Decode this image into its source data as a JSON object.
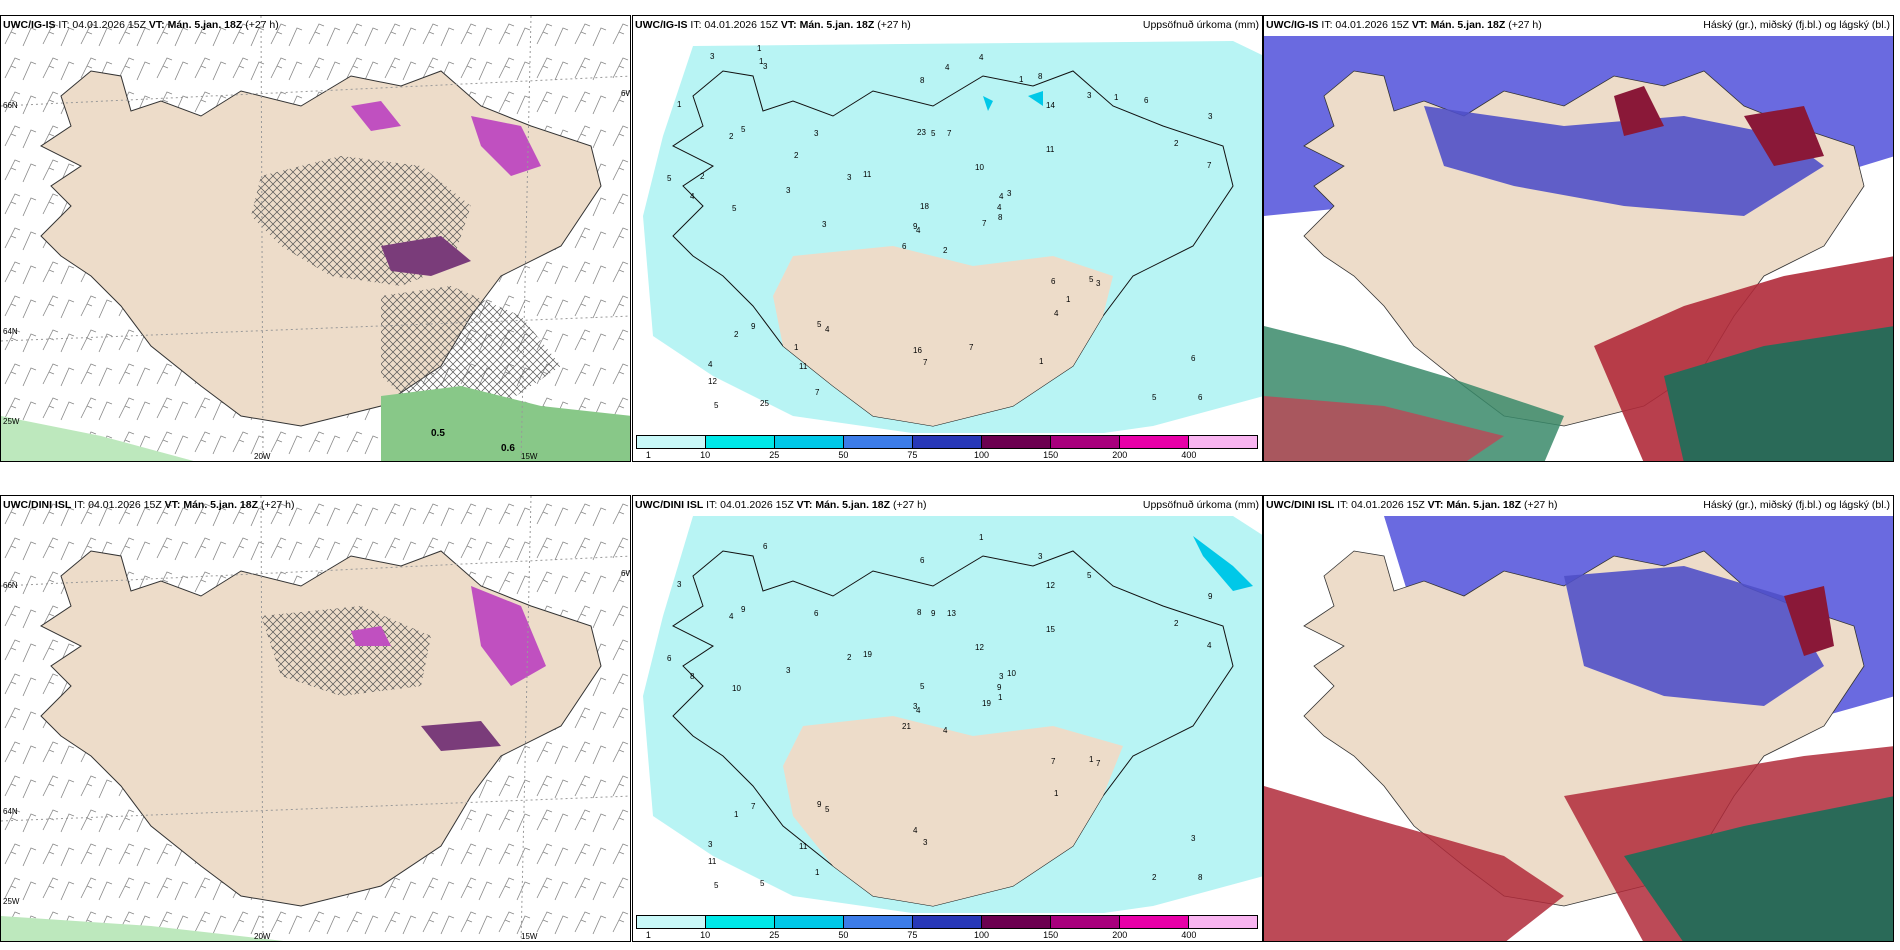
{
  "panels": [
    {
      "id": "p1",
      "model": "UWC/IG-IS",
      "it": "IT: 04.01.2026 15Z",
      "vt": "VT: Mán. 5.jan. 18Z",
      "lead": "(+27 h)",
      "title": "",
      "type": "wind"
    },
    {
      "id": "p2",
      "model": "UWC/IG-IS",
      "it": "IT: 04.01.2026 15Z",
      "vt": "VT: Mán. 5.jan. 18Z",
      "lead": "(+27 h)",
      "title": "Uppsöfnuð úrkoma (mm)",
      "type": "precip"
    },
    {
      "id": "p3",
      "model": "UWC/IG-IS",
      "it": "IT: 04.01.2026 15Z",
      "vt": "VT: Mán. 5.jan. 18Z",
      "lead": "(+27 h)",
      "title": "Háský (gr.), miðský (fj.bl.) og lágský (bl.)",
      "type": "cloud"
    },
    {
      "id": "p4",
      "model": "UWC/DINI ISL",
      "it": "IT: 04.01.2026 15Z",
      "vt": "VT: Mán. 5.jan. 18Z",
      "lead": "(+27 h)",
      "title": "",
      "type": "wind"
    },
    {
      "id": "p5",
      "model": "UWC/DINI ISL",
      "it": "IT: 04.01.2026 15Z",
      "vt": "VT: Mán. 5.jan. 18Z",
      "lead": "(+27 h)",
      "title": "Uppsöfnuð úrkoma (mm)",
      "type": "precip"
    },
    {
      "id": "p6",
      "model": "UWC/DINI ISL",
      "it": "IT: 04.01.2026 15Z",
      "vt": "VT: Mán. 5.jan. 18Z",
      "lead": "(+27 h)",
      "title": "Háský (gr.), miðský (fj.bl.) og lágský (bl.)",
      "type": "cloud"
    }
  ],
  "grid_labels": {
    "lat66": "66N",
    "lat64": "64N",
    "lon25": "25W",
    "lon20": "20W",
    "lon15": "15W",
    "lon6": "6W"
  },
  "wind_values_top": [
    "0.5",
    "0.6"
  ],
  "legend": {
    "ticks": [
      "1",
      "10",
      "25",
      "50",
      "75",
      "100",
      "150",
      "200",
      "400"
    ],
    "colors": [
      "#c8f8f8",
      "#00e8e8",
      "#00c8e8",
      "#3c7ce8",
      "#2838b8",
      "#6c0050",
      "#a8007c",
      "#e800a8",
      "#f8b4f0"
    ]
  },
  "precip_values_top": [
    "2",
    "2",
    "4",
    "4",
    "4",
    "4",
    "8",
    "7",
    "14",
    "7",
    "3",
    "6",
    "5",
    "3",
    "6",
    "11",
    "25",
    "23",
    "10",
    "9",
    "11",
    "12",
    "11",
    "5",
    "3",
    "3",
    "5",
    "8",
    "4",
    "6",
    "7",
    "9",
    "16",
    "18",
    "3",
    "3",
    "5",
    "5",
    "6",
    "5",
    "4",
    "3",
    "3",
    "4",
    "7",
    "5",
    "4",
    "5",
    "7",
    "8",
    "2",
    "2",
    "1",
    "1",
    "1",
    "1",
    "1",
    "3",
    "7",
    "6",
    "4",
    "3",
    "2",
    "2",
    "1",
    "1",
    "1"
  ],
  "precip_values_bottom": [
    "4",
    "4",
    "4",
    "3",
    "3",
    "5",
    "3",
    "13",
    "12",
    "19",
    "6",
    "8",
    "10",
    "9",
    "21",
    "15",
    "5",
    "8",
    "12",
    "7",
    "19",
    "11",
    "11",
    "9",
    "10",
    "7",
    "9",
    "6",
    "8",
    "7",
    "4",
    "3",
    "4",
    "5",
    "6",
    "5",
    "9",
    "2",
    "3",
    "1",
    "1",
    "2",
    "3",
    "1",
    "1",
    "6",
    "9",
    "5",
    "3",
    "1",
    "1",
    "2",
    "3"
  ],
  "colors": {
    "land": "#eddcc9",
    "sea": "#ffffff",
    "precip_light": "#b8f4f4",
    "cloud_high": "#5a5ad2",
    "cloud_red": "#8a1838",
    "cloud_green": "#2a6a58"
  }
}
